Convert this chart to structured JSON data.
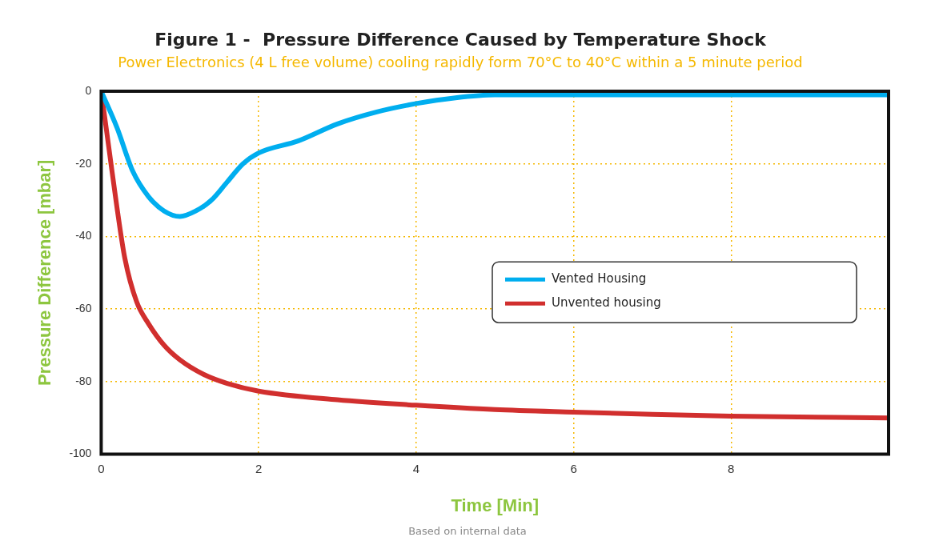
{
  "chart_data": {
    "type": "line",
    "title": "Figure 1 -  Pressure Difference Caused by Temperature Shock",
    "subtitle": "Power Electronics (4 L free volume) cooling rapidly form 70°C to 40°C within a 5 minute period",
    "xlabel": "Time [Min]",
    "ylabel": "Pressure Difference [mbar]",
    "annotations": [
      "Based on internal data"
    ],
    "xlim": [
      0,
      10
    ],
    "xticks": [
      0,
      2,
      4,
      6,
      8
    ],
    "ylim": [
      -100,
      0
    ],
    "yticks": [
      0,
      -20,
      -40,
      -60,
      -80,
      -100
    ],
    "grid": true,
    "legend": "right",
    "marker": "none",
    "line_style": "solid",
    "series": [
      {
        "name": "Vented Housing",
        "color": "#00aeef",
        "x": [
          0,
          0.2,
          0.4,
          0.6,
          0.8,
          1.0,
          1.2,
          1.4,
          1.6,
          1.8,
          2,
          2.5,
          3,
          3.5,
          4,
          4.5,
          5,
          6,
          7,
          8,
          9,
          10
        ],
        "values": [
          0,
          -10,
          -22,
          -29,
          -33,
          -34.5,
          -33,
          -30,
          -25,
          -20,
          -17,
          -13.7,
          -9,
          -5.7,
          -3.4,
          -1.8,
          -1,
          -1,
          -1,
          -1,
          -1,
          -1
        ]
      },
      {
        "name": "Unvented housing",
        "color": "#d12f2e",
        "x": [
          0,
          0.1,
          0.2,
          0.3,
          0.45,
          0.6,
          0.8,
          1,
          1.3,
          1.6,
          2,
          3,
          4,
          5,
          6,
          7,
          8,
          10
        ],
        "values": [
          0,
          -16,
          -32,
          -46,
          -58,
          -64,
          -70,
          -74,
          -78,
          -80.5,
          -82.6,
          -85,
          -86.5,
          -87.7,
          -88.4,
          -89,
          -89.5,
          -90
        ]
      }
    ]
  }
}
